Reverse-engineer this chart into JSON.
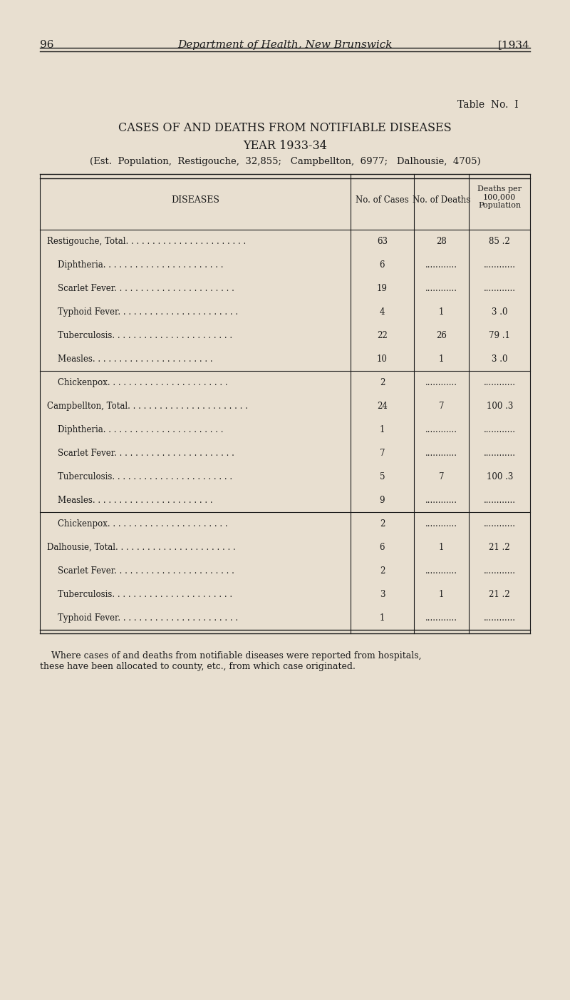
{
  "page_number": "96",
  "header_title": "Department of Health, New Brunswick",
  "header_year": "[1934",
  "table_no": "Table  No.  I",
  "title_line1": "CASES OF AND DEATHS FROM NOTIFIABLE DISEASES",
  "title_line2": "YEAR 1933-34",
  "subtitle": "(Est.  Population,  Restigouche,  32,855;   Campbellton,  6977;   Dalhousie,  4705)",
  "col_headers": [
    "DISEASES",
    "No. of Cases",
    "No. of Deaths",
    "Deaths per\n100,000\nPopulation"
  ],
  "rows": [
    {
      "disease": "Restigouche, Total",
      "dots": true,
      "indent": false,
      "cases": "63",
      "deaths": "28",
      "rate": "85 .2"
    },
    {
      "disease": "Diphtheria",
      "dots": true,
      "indent": true,
      "cases": "6",
      "deaths": "............",
      "rate": "............"
    },
    {
      "disease": "Scarlet Fever",
      "dots": true,
      "indent": true,
      "cases": "19",
      "deaths": "............",
      "rate": "............"
    },
    {
      "disease": "Typhoid Fever",
      "dots": true,
      "indent": true,
      "cases": "4",
      "deaths": "1",
      "rate": "3 .0"
    },
    {
      "disease": "Tuberculosis",
      "dots": true,
      "indent": true,
      "cases": "22",
      "deaths": "26",
      "rate": "79 .1"
    },
    {
      "disease": "Measles",
      "dots": true,
      "indent": true,
      "cases": "10",
      "deaths": "1",
      "rate": "3 .0"
    },
    {
      "disease": "Chickenpox",
      "dots": true,
      "indent": true,
      "cases": "2",
      "deaths": "............",
      "rate": "............"
    },
    {
      "disease": "Campbellton, Total",
      "dots": true,
      "indent": false,
      "cases": "24",
      "deaths": "7",
      "rate": "100 .3"
    },
    {
      "disease": "Diphtheria",
      "dots": true,
      "indent": true,
      "cases": "1",
      "deaths": "............",
      "rate": "............"
    },
    {
      "disease": "Scarlet Fever",
      "dots": true,
      "indent": true,
      "cases": "7",
      "deaths": "............",
      "rate": "............"
    },
    {
      "disease": "Tuberculosis",
      "dots": true,
      "indent": true,
      "cases": "5",
      "deaths": "7",
      "rate": "100 .3"
    },
    {
      "disease": "Measles",
      "dots": true,
      "indent": true,
      "cases": "9",
      "deaths": "............",
      "rate": "............"
    },
    {
      "disease": "Chickenpox",
      "dots": true,
      "indent": true,
      "cases": "2",
      "deaths": "............",
      "rate": "............"
    },
    {
      "disease": "Dalhousie, Total",
      "dots": true,
      "indent": false,
      "cases": "6",
      "deaths": "1",
      "rate": "21 .2"
    },
    {
      "disease": "Scarlet Fever",
      "dots": true,
      "indent": true,
      "cases": "2",
      "deaths": "............",
      "rate": "............"
    },
    {
      "disease": "Tuberculosis",
      "dots": true,
      "indent": true,
      "cases": "3",
      "deaths": "1",
      "rate": "21 .2"
    },
    {
      "disease": "Typhoid Fever",
      "dots": true,
      "indent": true,
      "cases": "1",
      "deaths": "............",
      "rate": "............"
    }
  ],
  "footnote": "    Where cases of and deaths from notifiable diseases were reported from hospitals,\nthese have been allocated to county, etc., from which case originated.",
  "bg_color": "#e8dfd0",
  "text_color": "#1a1a1a",
  "separator_after": [
    6,
    12
  ]
}
